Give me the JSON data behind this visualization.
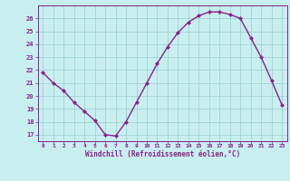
{
  "x": [
    0,
    1,
    2,
    3,
    4,
    5,
    6,
    7,
    8,
    9,
    10,
    11,
    12,
    13,
    14,
    15,
    16,
    17,
    18,
    19,
    20,
    21,
    22,
    23
  ],
  "y": [
    21.8,
    21.0,
    20.4,
    19.5,
    18.8,
    18.1,
    17.0,
    16.9,
    18.0,
    19.5,
    21.0,
    22.5,
    23.8,
    24.9,
    25.7,
    26.2,
    26.5,
    26.5,
    26.3,
    26.0,
    24.5,
    23.0,
    21.2,
    19.3
  ],
  "line_color": "#882288",
  "marker": "D",
  "markersize": 2.0,
  "bg_color": "#c8eef0",
  "grid_color": "#99cccc",
  "xlabel": "Windchill (Refroidissement éolien,°C)",
  "xlabel_color": "#882288",
  "tick_color": "#882288",
  "ylim": [
    16.5,
    27.0
  ],
  "xlim": [
    -0.5,
    23.5
  ],
  "yticks": [
    17,
    18,
    19,
    20,
    21,
    22,
    23,
    24,
    25,
    26
  ],
  "xticks": [
    0,
    1,
    2,
    3,
    4,
    5,
    6,
    7,
    8,
    9,
    10,
    11,
    12,
    13,
    14,
    15,
    16,
    17,
    18,
    19,
    20,
    21,
    22,
    23
  ],
  "linewidth": 1.0
}
